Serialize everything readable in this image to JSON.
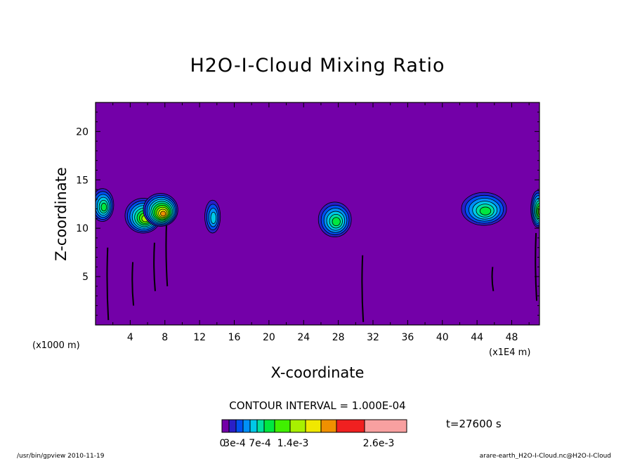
{
  "chart_data": {
    "type": "heatmap",
    "title": "H2O-I-Cloud Mixing Ratio",
    "xlabel": "X-coordinate",
    "ylabel": "Z-coordinate",
    "x_unit_left": "(x1000 m)",
    "x_unit_right": "(x1E4 m)",
    "xlim": [
      0,
      51.2
    ],
    "ylim": [
      0,
      23
    ],
    "x_ticks": [
      4,
      8,
      12,
      16,
      20,
      24,
      28,
      32,
      36,
      40,
      44,
      48
    ],
    "y_ticks": [
      5,
      10,
      15,
      20
    ],
    "background_color": "#7300a8",
    "contour_interval_text": "CONTOUR INTERVAL = 1.000E-04",
    "time_text": "t=27600 s",
    "colorbar": {
      "colors": [
        "#7300a8",
        "#2a1fc8",
        "#0050f0",
        "#0090f8",
        "#00c8e8",
        "#00e0a0",
        "#00e840",
        "#40f000",
        "#a8f000",
        "#f0e800",
        "#f09000",
        "#f02020",
        "#f8a0a0"
      ],
      "labels": [
        "0",
        "3e-4",
        "7e-4",
        "1.4e-3",
        "2.6e-3"
      ]
    },
    "cloud_cells": [
      {
        "x": 0.8,
        "z": 12.4,
        "w": 2.6,
        "h": 3.4,
        "peak": 6
      },
      {
        "x": 5.5,
        "z": 11.3,
        "w": 4.2,
        "h": 3.6,
        "peak": 8
      },
      {
        "x": 7.5,
        "z": 11.9,
        "w": 4.0,
        "h": 3.4,
        "peak": 10
      },
      {
        "x": 13.5,
        "z": 11.2,
        "w": 1.8,
        "h": 3.4,
        "peak": 4
      },
      {
        "x": 27.6,
        "z": 10.9,
        "w": 3.8,
        "h": 3.6,
        "peak": 6
      },
      {
        "x": 44.8,
        "z": 12.0,
        "w": 5.2,
        "h": 3.4,
        "peak": 6
      },
      {
        "x": 51.0,
        "z": 12.0,
        "w": 1.6,
        "h": 3.8,
        "peak": 8
      }
    ],
    "thin_streaks": [
      {
        "x": 1.4,
        "z0": 0.5,
        "z1": 8.0
      },
      {
        "x": 4.3,
        "z0": 2.0,
        "z1": 6.5
      },
      {
        "x": 6.8,
        "z0": 3.5,
        "z1": 8.5
      },
      {
        "x": 8.2,
        "z0": 4.0,
        "z1": 11.0
      },
      {
        "x": 30.8,
        "z0": 0.3,
        "z1": 7.2
      },
      {
        "x": 45.8,
        "z0": 3.5,
        "z1": 6.0
      },
      {
        "x": 50.8,
        "z0": 2.5,
        "z1": 9.5
      }
    ]
  },
  "footer": {
    "left": "/usr/bin/gpview  2010-11-19",
    "right": "arare-earth_H2O-I-Cloud.nc@H2O-I-Cloud"
  }
}
